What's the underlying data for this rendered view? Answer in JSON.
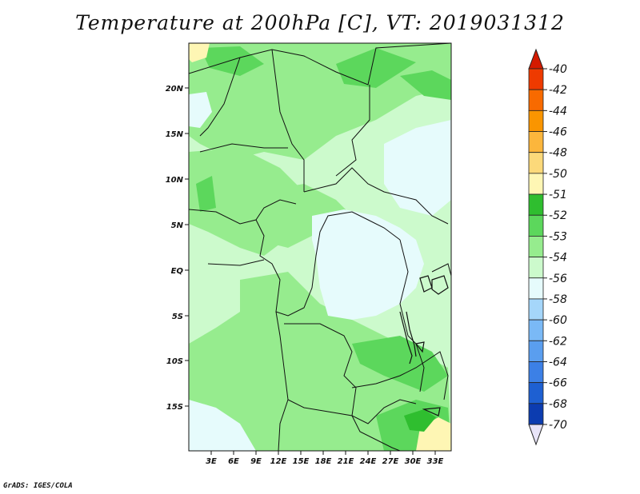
{
  "title": "Temperature at 200hPa [C], VT: 2019031312",
  "credit": "GrADS: IGES/COLA",
  "map": {
    "lat_labels": [
      "20N",
      "15N",
      "10N",
      "5N",
      "EQ",
      "5S",
      "10S",
      "15S"
    ],
    "lon_labels": [
      "3E",
      "6E",
      "9E",
      "12E",
      "15E",
      "18E",
      "21E",
      "24E",
      "27E",
      "30E",
      "33E"
    ]
  },
  "colorbar": {
    "labels": [
      "-40",
      "-42",
      "-44",
      "-46",
      "-48",
      "-50",
      "-51",
      "-52",
      "-53",
      "-54",
      "-56",
      "-58",
      "-60",
      "-62",
      "-64",
      "-66",
      "-68",
      "-70"
    ],
    "colors": [
      "#d41a00",
      "#ee3a00",
      "#f86a00",
      "#fa9500",
      "#fcb63c",
      "#fcd97a",
      "#fef6b4",
      "#2fbe2f",
      "#5cd75c",
      "#96ec8e",
      "#ccfacc",
      "#e6fbfc",
      "#a5d6fa",
      "#7ab9f6",
      "#5a9eef",
      "#3c80e6",
      "#1e60d2",
      "#0c3cb0",
      "#06107a"
    ]
  },
  "colors": {
    "field_dominant": "#96ec8e",
    "field_cold": "#e6fbfc",
    "field_warm": "#fef6b4",
    "field_mid": "#ccfacc",
    "field_strong": "#5cd75c"
  }
}
